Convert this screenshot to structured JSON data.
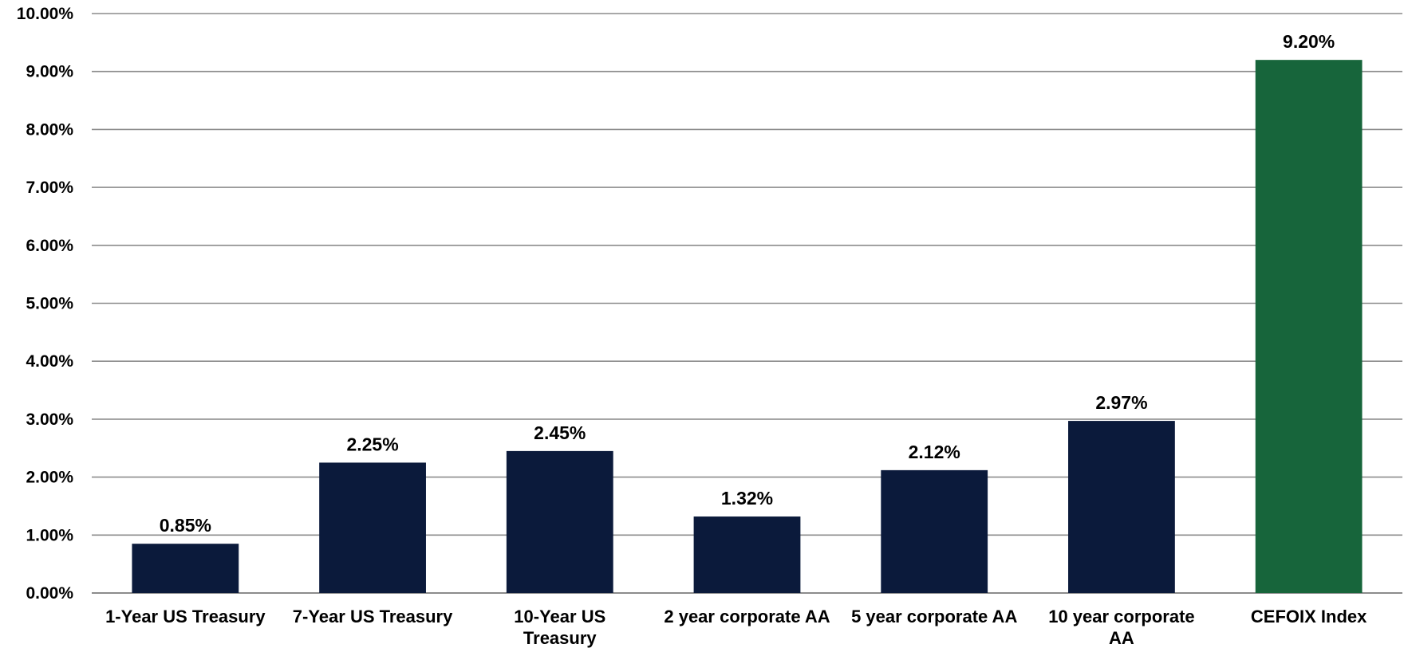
{
  "chart_data": {
    "type": "bar",
    "title": "",
    "xlabel": "",
    "ylabel": "",
    "categories": [
      [
        "1-Year US Treasury"
      ],
      [
        "7-Year US Treasury"
      ],
      [
        "10-Year US",
        "Treasury"
      ],
      [
        "2 year corporate AA"
      ],
      [
        "5 year corporate AA"
      ],
      [
        "10 year corporate",
        "AA"
      ],
      [
        "CEFOIX Index"
      ]
    ],
    "values": [
      0.85,
      2.25,
      2.45,
      1.32,
      2.12,
      2.97,
      9.2
    ],
    "value_labels": [
      "0.85%",
      "2.25%",
      "2.45%",
      "1.32%",
      "2.12%",
      "2.97%",
      "9.20%"
    ],
    "bar_colors": [
      "#0b1a3b",
      "#0b1a3b",
      "#0b1a3b",
      "#0b1a3b",
      "#0b1a3b",
      "#0b1a3b",
      "#17653b"
    ],
    "ylim": [
      0,
      10
    ],
    "yticks": [
      0,
      1,
      2,
      3,
      4,
      5,
      6,
      7,
      8,
      9,
      10
    ],
    "ytick_labels": [
      "0.00%",
      "1.00%",
      "2.00%",
      "3.00%",
      "4.00%",
      "5.00%",
      "6.00%",
      "7.00%",
      "8.00%",
      "9.00%",
      "10.00%"
    ],
    "grid": true,
    "legend": "none",
    "gridline_color": "#8c8c8c",
    "label_color": "#000000"
  }
}
